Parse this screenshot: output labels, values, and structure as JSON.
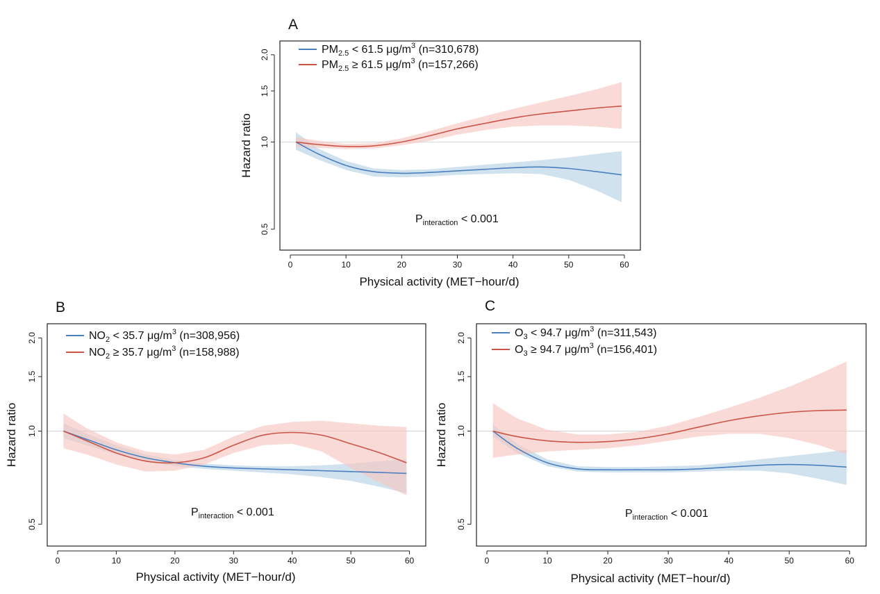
{
  "figure": {
    "panels": [
      {
        "letter": "A",
        "xlabel": "Physical activity (MET−hour/d)",
        "ylabel": "Hazard ratio",
        "p_main": "P",
        "p_sub": "interaction",
        "p_rest": " < 0.001",
        "legend": [
          {
            "base": "PM",
            "sub": "2.5",
            "mid": " < 61.5 μg/m",
            "sup": "3",
            "tail": " (n=310,678)"
          },
          {
            "base": "PM",
            "sub": "2.5",
            "mid": " ≥ 61.5 μg/m",
            "sup": "3",
            "tail": " (n=157,266)"
          }
        ]
      },
      {
        "letter": "B",
        "xlabel": "Physical activity (MET−hour/d)",
        "ylabel": "Hazard ratio",
        "p_main": "P",
        "p_sub": "interaction",
        "p_rest": " < 0.001",
        "legend": [
          {
            "base": "NO",
            "sub": "2",
            "mid": " < 35.7 μg/m",
            "sup": "3",
            "tail": " (n=308,956)"
          },
          {
            "base": "NO",
            "sub": "2",
            "mid": " ≥ 35.7 μg/m",
            "sup": "3",
            "tail": " (n=158,988)"
          }
        ]
      },
      {
        "letter": "C",
        "xlabel": "Physical activity (MET−hour/d)",
        "ylabel": "Hazard ratio",
        "p_main": "P",
        "p_sub": "interaction",
        "p_rest": " < 0.001",
        "legend": [
          {
            "base": "O",
            "sub": "3",
            "mid": " < 94.7  μg/m",
            "sup": "3",
            "tail": " (n=311,543)"
          },
          {
            "base": "O",
            "sub": "3",
            "mid": " ≥ 94.7 μg/m",
            "sup": "3",
            "tail": " (n=156,401)"
          }
        ]
      }
    ]
  },
  "colors": {
    "low": "#4a7fbf",
    "low_band": "#b9d3e6",
    "high": "#cc5446",
    "high_band": "#f6c6c0"
  },
  "chart_data": [
    {
      "type": "line",
      "panel": "A",
      "title": "",
      "xlabel": "Physical activity (MET−hour/d)",
      "ylabel": "Hazard ratio",
      "xlim": [
        0,
        61
      ],
      "ylim": [
        0.45,
        2.1
      ],
      "yscale": "log",
      "xticks": [
        0,
        10,
        20,
        30,
        40,
        50,
        60
      ],
      "yticks": [
        0.5,
        1.0,
        1.5,
        2.0
      ],
      "reference_line": 1.0,
      "x": [
        1,
        5,
        10,
        15,
        20,
        25,
        30,
        35,
        40,
        45,
        50,
        55,
        59.5
      ],
      "series": [
        {
          "name": "PM2.5 < 61.5 μg/m3 (n=310,678)",
          "color_key": "low",
          "values": [
            1.0,
            0.91,
            0.83,
            0.79,
            0.78,
            0.785,
            0.795,
            0.805,
            0.815,
            0.82,
            0.81,
            0.79,
            0.77
          ],
          "lower": [
            0.94,
            0.87,
            0.8,
            0.76,
            0.755,
            0.76,
            0.77,
            0.775,
            0.78,
            0.775,
            0.74,
            0.68,
            0.62
          ],
          "upper": [
            1.08,
            0.95,
            0.86,
            0.81,
            0.8,
            0.805,
            0.82,
            0.835,
            0.85,
            0.865,
            0.885,
            0.91,
            0.93
          ]
        },
        {
          "name": "PM2.5 ≥ 61.5 μg/m3 (n=157,266)",
          "color_key": "high",
          "values": [
            1.0,
            0.98,
            0.965,
            0.97,
            1.0,
            1.05,
            1.11,
            1.16,
            1.21,
            1.25,
            1.28,
            1.31,
            1.33
          ],
          "lower": [
            0.96,
            0.955,
            0.945,
            0.95,
            0.975,
            1.01,
            1.06,
            1.1,
            1.13,
            1.14,
            1.14,
            1.13,
            1.11
          ],
          "upper": [
            1.04,
            1.01,
            0.985,
            0.99,
            1.03,
            1.09,
            1.16,
            1.23,
            1.3,
            1.37,
            1.44,
            1.52,
            1.61
          ]
        }
      ],
      "annotations": [
        "Pinteraction < 0.001"
      ]
    },
    {
      "type": "line",
      "panel": "B",
      "title": "",
      "xlabel": "Physical activity (MET−hour/d)",
      "ylabel": "Hazard ratio",
      "xlim": [
        0,
        61
      ],
      "ylim": [
        0.45,
        2.1
      ],
      "yscale": "log",
      "xticks": [
        0,
        10,
        20,
        30,
        40,
        50,
        60
      ],
      "yticks": [
        0.5,
        1.0,
        1.5,
        2.0
      ],
      "reference_line": 1.0,
      "x": [
        1,
        5,
        10,
        15,
        20,
        25,
        30,
        35,
        40,
        45,
        50,
        55,
        59.5
      ],
      "series": [
        {
          "name": "NO2 < 35.7 μg/m3 (n=308,956)",
          "color_key": "low",
          "values": [
            1.0,
            0.94,
            0.87,
            0.82,
            0.79,
            0.77,
            0.76,
            0.755,
            0.75,
            0.745,
            0.74,
            0.735,
            0.73
          ],
          "lower": [
            0.95,
            0.9,
            0.84,
            0.8,
            0.77,
            0.755,
            0.745,
            0.735,
            0.725,
            0.71,
            0.69,
            0.66,
            0.63
          ],
          "upper": [
            1.06,
            0.98,
            0.9,
            0.84,
            0.805,
            0.785,
            0.775,
            0.77,
            0.77,
            0.775,
            0.785,
            0.8,
            0.81
          ]
        },
        {
          "name": "NO2 ≥ 35.7 μg/m3 (n=158,988)",
          "color_key": "high",
          "values": [
            1.0,
            0.93,
            0.85,
            0.8,
            0.79,
            0.82,
            0.9,
            0.97,
            0.99,
            0.97,
            0.91,
            0.85,
            0.79
          ],
          "lower": [
            0.88,
            0.84,
            0.78,
            0.74,
            0.745,
            0.78,
            0.85,
            0.9,
            0.91,
            0.86,
            0.76,
            0.68,
            0.62
          ],
          "upper": [
            1.14,
            1.02,
            0.92,
            0.86,
            0.84,
            0.87,
            0.96,
            1.04,
            1.07,
            1.08,
            1.06,
            1.04,
            1.03
          ]
        }
      ],
      "annotations": [
        "Pinteraction < 0.001"
      ]
    },
    {
      "type": "line",
      "panel": "C",
      "title": "",
      "xlabel": "Physical activity (MET−hour/d)",
      "ylabel": "Hazard ratio",
      "xlim": [
        0,
        61
      ],
      "ylim": [
        0.45,
        2.1
      ],
      "yscale": "log",
      "xticks": [
        0,
        10,
        20,
        30,
        40,
        50,
        60
      ],
      "yticks": [
        0.5,
        1.0,
        1.5,
        2.0
      ],
      "reference_line": 1.0,
      "x": [
        1,
        5,
        10,
        15,
        20,
        25,
        30,
        35,
        40,
        45,
        50,
        55,
        59.5
      ],
      "series": [
        {
          "name": "O3 < 94.7  μg/m3 (n=311,543)",
          "color_key": "low",
          "values": [
            1.0,
            0.88,
            0.79,
            0.755,
            0.75,
            0.75,
            0.75,
            0.755,
            0.765,
            0.775,
            0.78,
            0.775,
            0.765
          ],
          "lower": [
            0.96,
            0.85,
            0.77,
            0.74,
            0.735,
            0.735,
            0.735,
            0.74,
            0.745,
            0.745,
            0.73,
            0.7,
            0.67
          ],
          "upper": [
            1.05,
            0.91,
            0.81,
            0.77,
            0.765,
            0.765,
            0.77,
            0.775,
            0.79,
            0.81,
            0.83,
            0.85,
            0.87
          ]
        },
        {
          "name": "O3 ≥ 94.7 μg/m3 (n=156,401)",
          "color_key": "high",
          "values": [
            1.0,
            0.96,
            0.93,
            0.92,
            0.925,
            0.945,
            0.98,
            1.03,
            1.08,
            1.12,
            1.15,
            1.165,
            1.17
          ],
          "lower": [
            0.82,
            0.84,
            0.86,
            0.87,
            0.88,
            0.9,
            0.93,
            0.96,
            0.98,
            0.98,
            0.95,
            0.9,
            0.84
          ],
          "upper": [
            1.23,
            1.1,
            1.01,
            0.975,
            0.975,
            0.995,
            1.04,
            1.11,
            1.19,
            1.28,
            1.39,
            1.53,
            1.68
          ]
        }
      ],
      "annotations": [
        "Pinteraction < 0.001"
      ]
    }
  ]
}
